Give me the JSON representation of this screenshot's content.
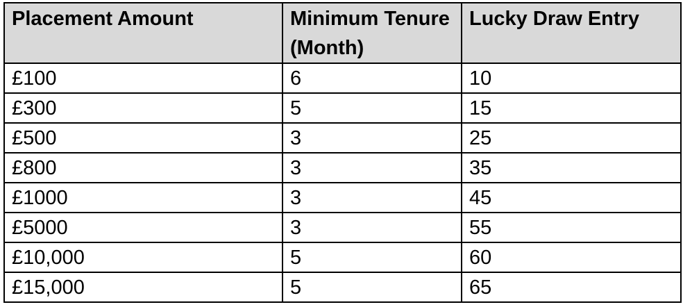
{
  "table": {
    "headers": [
      "Placement Amount",
      "Minimum Tenure (Month)",
      "Lucky Draw Entry"
    ],
    "header_bg": "#d9d9d9",
    "rows": [
      [
        "£100",
        "6",
        "10"
      ],
      [
        "£300",
        "5",
        "15"
      ],
      [
        "£500",
        "3",
        "25"
      ],
      [
        "£800",
        "3",
        "35"
      ],
      [
        "£1000",
        "3",
        "45"
      ],
      [
        "£5000",
        "3",
        "55"
      ],
      [
        "£10,000",
        "5",
        "60"
      ],
      [
        "£15,000",
        "5",
        "65"
      ]
    ]
  }
}
